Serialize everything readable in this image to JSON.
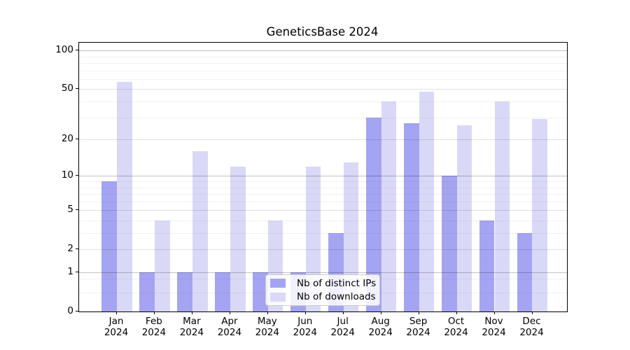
{
  "chart_data": {
    "type": "bar",
    "title": "GeneticsBase 2024",
    "categories": [
      "Jan 2024",
      "Feb 2024",
      "Mar 2024",
      "Apr 2024",
      "May 2024",
      "Jun 2024",
      "Jul 2024",
      "Aug 2024",
      "Sep 2024",
      "Oct 2024",
      "Nov 2024",
      "Dec 2024"
    ],
    "series": [
      {
        "name": "Nb of distinct IPs",
        "color": "#a4a4f2",
        "values": [
          9,
          1,
          1,
          1,
          1,
          1,
          3,
          30,
          27,
          10,
          4,
          3
        ]
      },
      {
        "name": "Nb of downloads",
        "color": "#d9d9f7",
        "values": [
          57,
          4,
          16,
          12,
          4,
          12,
          13,
          40,
          48,
          26,
          40,
          29
        ]
      }
    ],
    "yscale": "log10(1+v)",
    "ylim": [
      0,
      115
    ],
    "yticks": [
      0,
      1,
      2,
      5,
      10,
      20,
      50,
      100
    ],
    "decade_ticks": [
      1,
      10,
      100
    ],
    "minor_gridlines": [
      0.4,
      0.8,
      3,
      4,
      6,
      7,
      8,
      9,
      30,
      40,
      60,
      70,
      80,
      90
    ],
    "grid": true,
    "legend_position": "lower center",
    "background_color": "#ffffff",
    "spine_color": "#000000"
  }
}
